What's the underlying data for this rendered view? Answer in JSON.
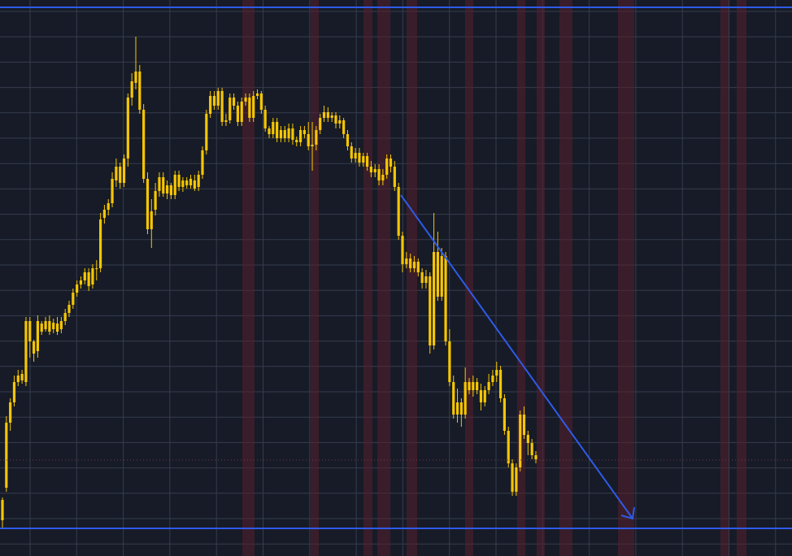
{
  "chart_data": {
    "type": "candlestick",
    "title": "",
    "xlabel": "",
    "ylabel": "",
    "grid": true,
    "ylim": [
      0,
      684
    ],
    "colors": {
      "background": "#161b27",
      "grid": "#363c4e",
      "candle": "#f7c600",
      "drawing": "#2f5be8",
      "session_band": "#5a1f2e",
      "reference_line": "#7a3a4a"
    },
    "series": [
      {
        "values": [
          [
            640,
            615,
            650,
            612
          ],
          [
            600,
            520,
            605,
            512
          ],
          [
            520,
            495,
            530,
            490
          ],
          [
            495,
            470,
            500,
            462
          ],
          [
            470,
            462,
            475,
            455
          ],
          [
            460,
            468,
            472,
            455
          ],
          [
            470,
            395,
            475,
            390
          ],
          [
            395,
            420,
            440,
            390
          ],
          [
            420,
            435,
            445,
            418
          ],
          [
            432,
            395,
            440,
            388
          ],
          [
            398,
            408,
            412,
            395
          ],
          [
            405,
            395,
            408,
            390
          ],
          [
            395,
            408,
            412,
            388
          ],
          [
            405,
            397,
            410,
            392
          ],
          [
            398,
            408,
            412,
            390
          ],
          [
            405,
            395,
            410,
            390
          ],
          [
            395,
            385,
            400,
            380
          ],
          [
            385,
            375,
            390,
            370
          ],
          [
            375,
            360,
            380,
            355
          ],
          [
            360,
            350,
            365,
            345
          ],
          [
            350,
            345,
            355,
            340
          ],
          [
            345,
            335,
            350,
            330
          ],
          [
            335,
            352,
            358,
            330
          ],
          [
            350,
            330,
            355,
            325
          ],
          [
            330,
            330,
            345,
            320
          ],
          [
            330,
            270,
            335,
            262
          ],
          [
            268,
            258,
            275,
            252
          ],
          [
            258,
            250,
            265,
            245
          ],
          [
            250,
            220,
            255,
            212
          ],
          [
            222,
            205,
            230,
            195
          ],
          [
            205,
            225,
            232,
            200
          ],
          [
            225,
            195,
            230,
            190
          ],
          [
            195,
            120,
            205,
            115
          ],
          [
            120,
            100,
            130,
            90
          ],
          [
            102,
            88,
            110,
            45
          ],
          [
            88,
            135,
            140,
            80
          ],
          [
            135,
            220,
            225,
            128
          ],
          [
            220,
            282,
            288,
            212
          ],
          [
            282,
            260,
            305,
            245
          ],
          [
            258,
            235,
            265,
            225
          ],
          [
            235,
            218,
            242,
            212
          ],
          [
            218,
            238,
            242,
            212
          ],
          [
            238,
            228,
            245,
            222
          ],
          [
            228,
            240,
            245,
            225
          ],
          [
            240,
            215,
            245,
            210
          ],
          [
            215,
            230,
            235,
            210
          ],
          [
            230,
            222,
            236,
            218
          ],
          [
            222,
            228,
            232,
            218
          ],
          [
            228,
            220,
            232,
            215
          ],
          [
            222,
            232,
            235,
            215
          ],
          [
            230,
            215,
            235,
            210
          ],
          [
            215,
            185,
            220,
            180
          ],
          [
            185,
            140,
            190,
            135
          ],
          [
            140,
            118,
            145,
            112
          ],
          [
            118,
            130,
            135,
            112
          ],
          [
            130,
            112,
            135,
            108
          ],
          [
            112,
            150,
            155,
            108
          ],
          [
            150,
            148,
            155,
            140
          ],
          [
            148,
            120,
            152,
            115
          ],
          [
            120,
            130,
            135,
            115
          ],
          [
            130,
            150,
            155,
            125
          ],
          [
            150,
            125,
            155,
            120
          ],
          [
            125,
            120,
            130,
            115
          ],
          [
            120,
            145,
            150,
            115
          ],
          [
            145,
            118,
            150,
            112
          ],
          [
            118,
            115,
            122,
            110
          ],
          [
            115,
            135,
            140,
            112
          ],
          [
            135,
            158,
            162,
            130
          ],
          [
            158,
            165,
            170,
            155
          ],
          [
            165,
            150,
            170,
            145
          ],
          [
            150,
            170,
            175,
            145
          ],
          [
            170,
            160,
            175,
            155
          ],
          [
            160,
            170,
            175,
            155
          ],
          [
            170,
            158,
            175,
            152
          ],
          [
            158,
            172,
            178,
            152
          ],
          [
            172,
            175,
            180,
            168
          ],
          [
            175,
            160,
            180,
            155
          ],
          [
            160,
            165,
            170,
            155
          ],
          [
            165,
            180,
            185,
            150
          ],
          [
            180,
            178,
            210,
            150
          ],
          [
            178,
            160,
            185,
            155
          ],
          [
            160,
            145,
            165,
            140
          ],
          [
            145,
            138,
            150,
            130
          ],
          [
            138,
            145,
            150,
            132
          ],
          [
            145,
            142,
            150,
            138
          ],
          [
            142,
            152,
            158,
            138
          ],
          [
            152,
            148,
            158,
            142
          ],
          [
            148,
            165,
            170,
            145
          ],
          [
            165,
            180,
            185,
            160
          ],
          [
            180,
            195,
            200,
            175
          ],
          [
            195,
            188,
            200,
            182
          ],
          [
            188,
            200,
            205,
            182
          ],
          [
            200,
            192,
            205,
            188
          ],
          [
            192,
            205,
            210,
            188
          ],
          [
            205,
            212,
            218,
            198
          ],
          [
            212,
            208,
            218,
            202
          ],
          [
            208,
            222,
            228,
            202
          ],
          [
            222,
            215,
            228,
            208
          ],
          [
            215,
            195,
            220,
            190
          ],
          [
            195,
            205,
            212,
            190
          ],
          [
            205,
            230,
            235,
            198
          ],
          [
            230,
            290,
            295,
            225
          ],
          [
            290,
            325,
            335,
            285
          ],
          [
            325,
            318,
            330,
            310
          ],
          [
            318,
            330,
            335,
            312
          ],
          [
            330,
            322,
            335,
            315
          ],
          [
            322,
            335,
            340,
            318
          ],
          [
            335,
            348,
            355,
            330
          ],
          [
            348,
            340,
            355,
            332
          ],
          [
            340,
            425,
            435,
            335
          ],
          [
            425,
            310,
            430,
            262
          ],
          [
            310,
            365,
            370,
            285
          ],
          [
            365,
            315,
            370,
            305
          ],
          [
            315,
            420,
            425,
            310
          ],
          [
            420,
            470,
            475,
            405
          ],
          [
            470,
            510,
            515,
            462
          ],
          [
            510,
            495,
            520,
            478
          ],
          [
            495,
            510,
            525,
            490
          ],
          [
            510,
            470,
            515,
            452
          ],
          [
            470,
            480,
            485,
            465
          ],
          [
            480,
            470,
            488,
            462
          ],
          [
            470,
            480,
            485,
            465
          ],
          [
            480,
            495,
            505,
            472
          ],
          [
            495,
            480,
            500,
            475
          ],
          [
            480,
            470,
            485,
            460
          ],
          [
            470,
            462,
            475,
            455
          ],
          [
            462,
            455,
            470,
            445
          ],
          [
            455,
            490,
            495,
            450
          ],
          [
            490,
            530,
            535,
            485
          ],
          [
            530,
            570,
            575,
            525
          ],
          [
            570,
            605,
            610,
            565
          ],
          [
            605,
            575,
            610,
            570
          ],
          [
            575,
            510,
            580,
            505
          ],
          [
            510,
            535,
            540,
            500
          ],
          [
            535,
            545,
            560,
            530
          ],
          [
            545,
            560,
            565,
            540
          ],
          [
            560,
            565,
            570,
            555
          ]
        ]
      }
    ],
    "drawings": {
      "horizontal_levels": [
        9,
        650
      ],
      "dotted_level": 566,
      "trend_arrow": [
        [
          493,
          240
        ],
        [
          778,
          638
        ]
      ],
      "vertical_bands": [
        [
          298,
          313
        ],
        [
          382,
          392
        ],
        [
          447,
          458
        ],
        [
          464,
          480
        ],
        [
          500,
          513
        ],
        [
          572,
          582
        ],
        [
          636,
          646
        ],
        [
          660,
          670
        ],
        [
          688,
          704
        ],
        [
          760,
          780
        ],
        [
          886,
          896
        ],
        [
          906,
          918
        ]
      ]
    }
  }
}
